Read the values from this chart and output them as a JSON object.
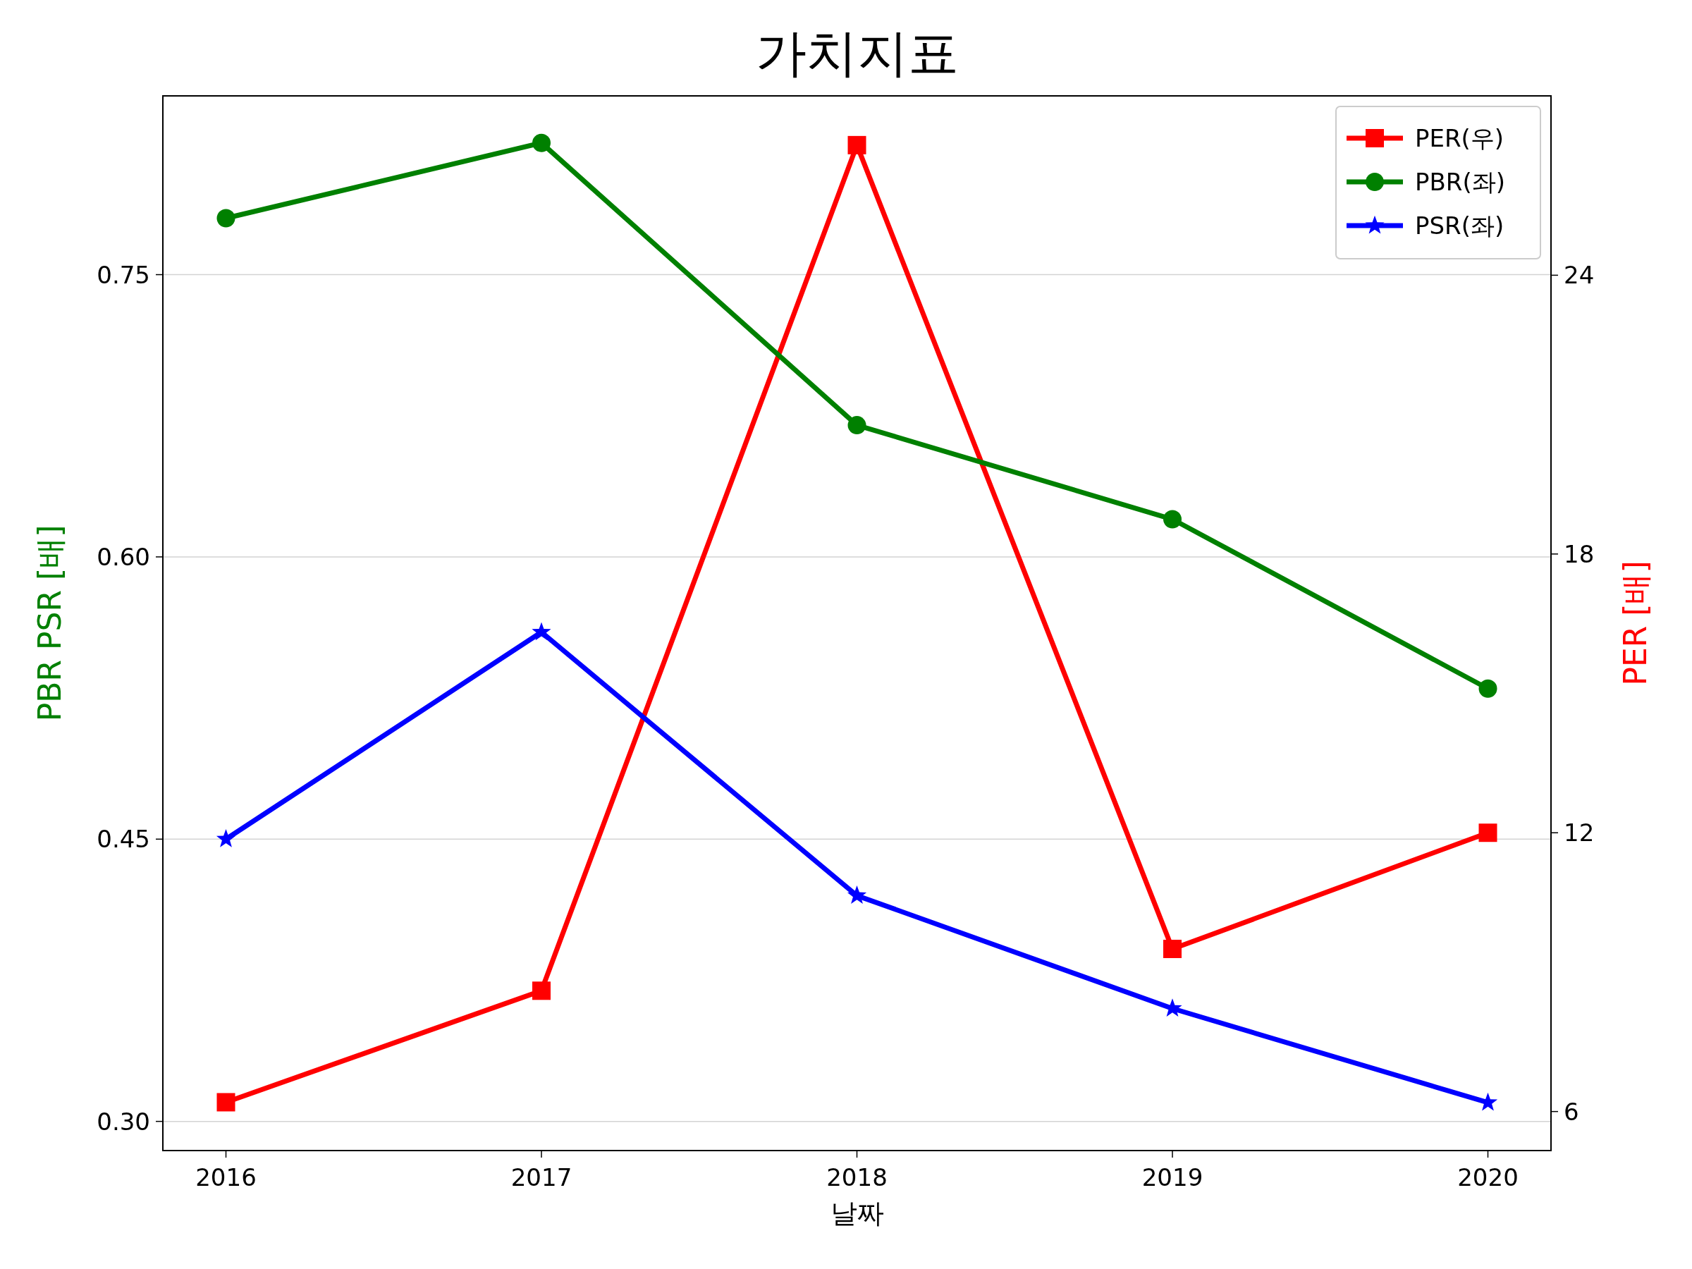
{
  "chart_data": {
    "type": "line",
    "title": "가치지표",
    "xlabel": "날짜",
    "ylabel": "PBR PSR [배]",
    "y2label": "PER [배]",
    "x": [
      2016,
      2017,
      2018,
      2019,
      2020
    ],
    "xlim": [
      2015.8,
      2020.2
    ],
    "xticks": [
      2016,
      2017,
      2018,
      2019,
      2020
    ],
    "ylim": [
      0.2845,
      0.845
    ],
    "yticks": [
      {
        "value": 0.3,
        "label": "0.30"
      },
      {
        "value": 0.45,
        "label": "0.45"
      },
      {
        "value": 0.6,
        "label": "0.60"
      },
      {
        "value": 0.75,
        "label": "0.75"
      }
    ],
    "y2lim": [
      5.16,
      27.86
    ],
    "y2ticks": [
      6,
      12,
      18,
      24
    ],
    "grid": "y",
    "legend": "top right",
    "line_style": "solid",
    "series": [
      {
        "name": "PER(우)",
        "color": "#ff0000",
        "axis": "y2",
        "marker": "square",
        "values": [
          6.2,
          8.6,
          26.8,
          9.5,
          12.0
        ]
      },
      {
        "name": "PBR(좌)",
        "color": "#008000",
        "marker": "circle",
        "values": [
          0.78,
          0.82,
          0.67,
          0.62,
          0.53
        ]
      },
      {
        "name": "PSR(좌)",
        "color": "#0000ff",
        "marker": "star",
        "values": [
          0.45,
          0.56,
          0.42,
          0.36,
          0.31
        ]
      }
    ]
  }
}
